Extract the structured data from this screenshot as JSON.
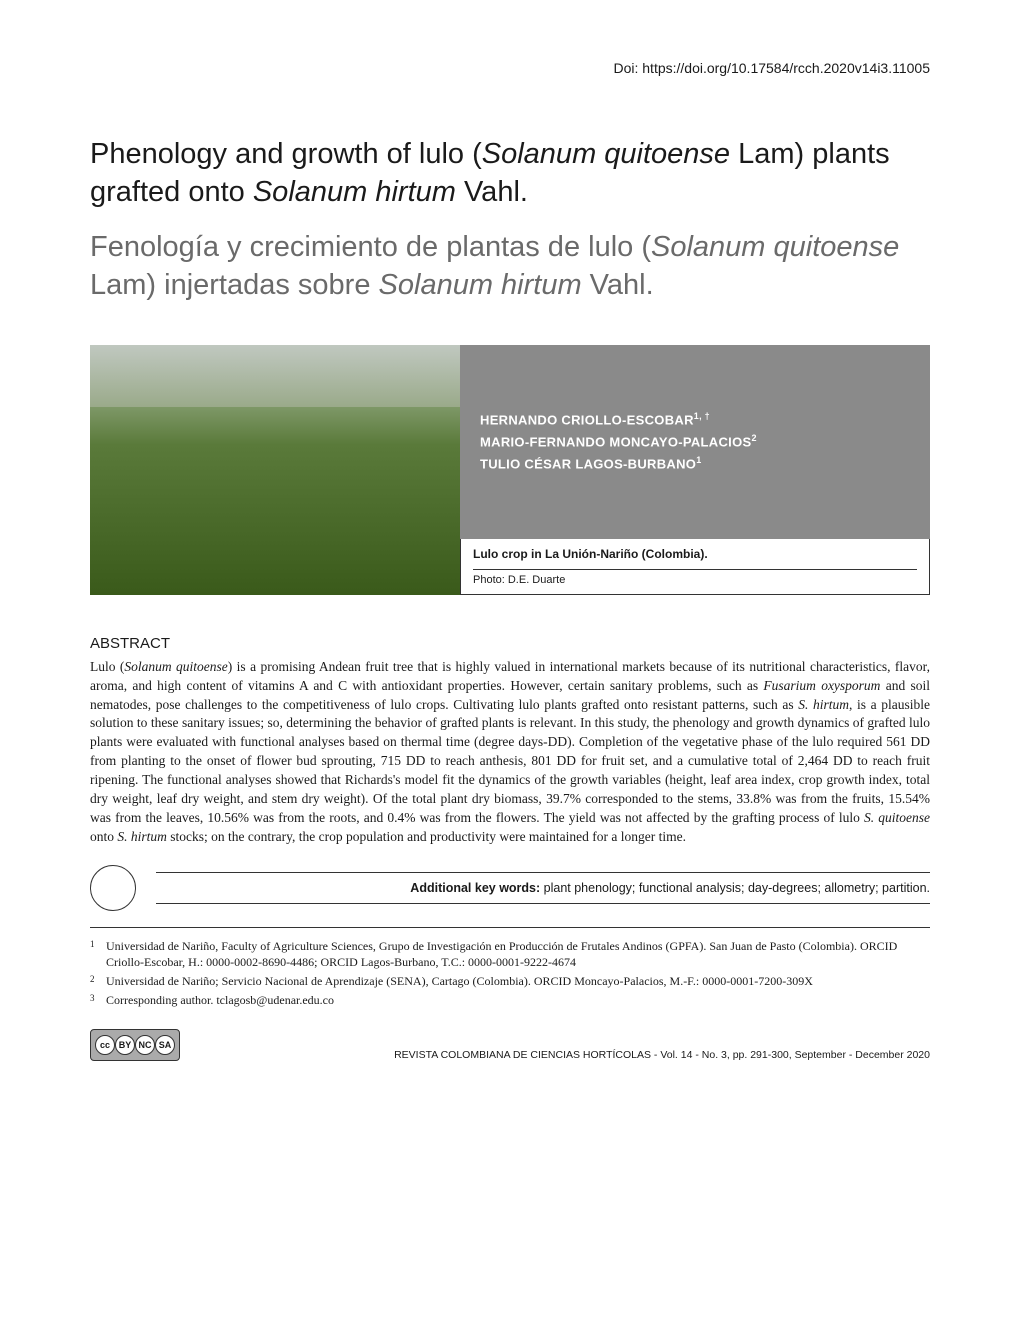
{
  "doi": {
    "label": "Doi: ",
    "url": "https://doi.org/10.17584/rcch.2020v14i3.11005"
  },
  "title_en": {
    "pre": "Phenology and growth of lulo (",
    "it1": "Solanum quitoense",
    "mid1": " Lam) plants grafted onto ",
    "it2": "Solanum hirtum",
    "post": " Vahl."
  },
  "title_es": {
    "pre": "Fenología y crecimiento de plantas de lulo (",
    "it1": "Solanum quitoense",
    "mid1": " Lam) injertadas sobre ",
    "it2": "Solanum hirtum",
    "post": " Vahl."
  },
  "authors": [
    {
      "name": "HERNANDO CRIOLLO-ESCOBAR",
      "affil": "1, †"
    },
    {
      "name": "MARIO-FERNANDO MONCAYO-PALACIOS",
      "affil": "2"
    },
    {
      "name": "TULIO CÉSAR LAGOS-BURBANO",
      "affil": "1"
    }
  ],
  "caption": {
    "title": "Lulo crop in La Unión-Nariño (Colombia).",
    "credit": "Photo: D.E. Duarte"
  },
  "abstract": {
    "heading": "ABSTRACT",
    "body_parts": [
      "Lulo (",
      "Solanum quitoense",
      ") is a promising Andean fruit tree that is highly valued in international markets because of its nutritional characteristics, flavor, aroma, and high content of vitamins A and C with antioxidant properties. However, certain sanitary problems, such as ",
      "Fusarium oxysporum",
      " and soil nematodes, pose challenges to the competitiveness of lulo crops. Cultivating lulo plants grafted onto resistant patterns, such as ",
      "S. hirtum",
      ", is a plausible solution to these sanitary issues; so, determining the behavior of grafted plants is relevant. In this study, the phenology and growth dynamics of grafted lulo plants were evaluated with functional analyses based on thermal time (degree days-DD). Completion of the vegetative phase of the lulo required 561 DD from planting to the onset of flower bud sprouting, 715 DD to reach anthesis, 801 DD for fruit set, and a cumulative total of 2,464 DD to reach fruit ripening. The functional analyses showed that Richards's model fit the dynamics of the growth variables (height, leaf area index, crop growth index, total dry weight, leaf dry weight, and stem dry weight). Of the total plant dry biomass, 39.7% corresponded to the stems, 33.8% was from the fruits, 15.54% was from the leaves, 10.56% was from the roots, and 0.4% was from the flowers. The yield was not affected by the grafting process of lulo ",
      "S. quitoense",
      " onto ",
      "S. hirtum",
      " stocks; on the contrary, the crop population and productivity were maintained for a longer time."
    ]
  },
  "keywords": {
    "label": "Additional key words: ",
    "value": "plant phenology; functional analysis; day-degrees; allometry; partition."
  },
  "footnotes": [
    {
      "num": "1",
      "text": "Universidad de Nariño, Faculty of Agriculture Sciences, Grupo de Investigación en Producción de Frutales Andinos (GPFA). San Juan de Pasto (Colombia). ORCID Criollo-Escobar, H.: 0000-0002-8690-4486; ORCID Lagos-Burbano, T.C.: 0000-0001-9222-4674"
    },
    {
      "num": "2",
      "text": "Universidad de Nariño; Servicio Nacional de Aprendizaje (SENA), Cartago (Colombia). ORCID Moncayo-Palacios, M.-F.: 0000-0001-7200-309X"
    },
    {
      "num": "3",
      "text": "Corresponding author. tclagosb@udenar.edu.co"
    }
  ],
  "cc_labels": [
    "cc",
    "BY",
    "NC",
    "SA"
  ],
  "cc_sub": [
    "BY",
    "NC",
    "SA"
  ],
  "journal": "REVISTA COLOMBIANA DE CIENCIAS HORTÍCOLAS - Vol. 14 - No. 3, pp. 291-300, September - December 2020",
  "colors": {
    "authors_bg": "#8a8a8a",
    "title_es_color": "#6a6a6a",
    "text": "#1a1a1a"
  }
}
